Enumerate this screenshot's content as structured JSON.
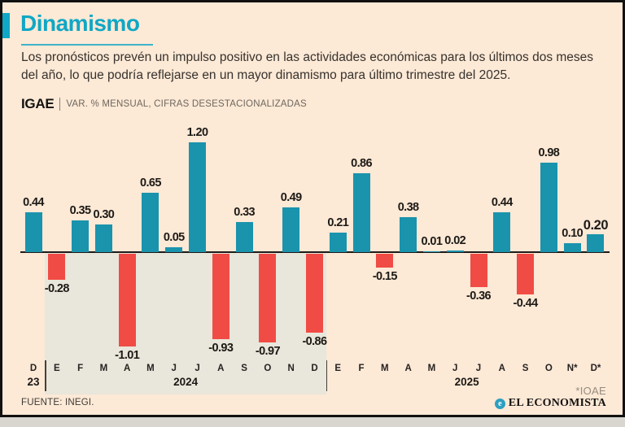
{
  "header": {
    "title": "Dinamismo",
    "description": "Los pronósticos prevén un impulso positivo en las actividades económicas para los últimos dos meses del año, lo que podría reflejarse en un mayor dinamismo para último trimestre del 2025.",
    "chart_label": "IGAE",
    "chart_sublabel": "VAR. % MENSUAL, CIFRAS DESESTACIONALIZADAS"
  },
  "chart_data": {
    "type": "bar",
    "categories": [
      "D",
      "E",
      "F",
      "M",
      "A",
      "M",
      "J",
      "J",
      "A",
      "S",
      "O",
      "N",
      "D",
      "E",
      "F",
      "M",
      "A",
      "M",
      "J",
      "J",
      "A",
      "S",
      "O",
      "N*",
      "D*"
    ],
    "values": [
      0.44,
      -0.28,
      0.35,
      0.3,
      -1.01,
      0.65,
      0.05,
      1.2,
      -0.93,
      0.33,
      -0.97,
      0.49,
      -0.86,
      0.21,
      0.86,
      -0.15,
      0.38,
      0.01,
      0.02,
      -0.36,
      0.44,
      -0.44,
      0.98,
      0.1,
      0.2
    ],
    "groups": [
      {
        "label": "23",
        "start": 0,
        "end": 0,
        "shaded": false
      },
      {
        "label": "2024",
        "start": 1,
        "end": 12,
        "shaded": true
      },
      {
        "label": "2025",
        "start": 13,
        "end": 24,
        "shaded": false
      }
    ],
    "title": "IGAE",
    "subtitle": "VAR. % MENSUAL, CIFRAS DESESTACIONALIZADAS",
    "ylim": [
      -1.1,
      1.35
    ],
    "grid": false,
    "legend": "none",
    "positive_color": "#1a93ad",
    "negative_color": "#f04c45",
    "highlight_last_value": true
  },
  "footer": {
    "note": "*IOAE",
    "source": "FUENTE: INEGI.",
    "brand": "EL ECONOMISTA",
    "brand_icon": "e"
  },
  "colors": {
    "accent_teal": "#10a7c5",
    "background": "#fce9d6",
    "shade_2024": "#e9e6db",
    "bar_positive": "#1a93ad",
    "bar_negative": "#f04c45"
  }
}
